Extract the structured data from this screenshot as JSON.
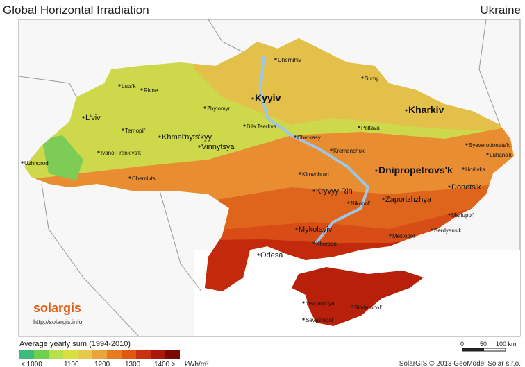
{
  "header": {
    "title": "Global Horizontal Irradiation",
    "country": "Ukraine"
  },
  "map": {
    "cities": [
      "Chernihiv",
      "Sumy",
      "Kyyiv",
      "Kharkiv",
      "Luts'k",
      "Rivne",
      "L'viv",
      "Zhytomyr",
      "Ternopil'",
      "Khmel'nyts'kyy",
      "Bila Tserkva",
      "Poltava",
      "Cherkasy",
      "Kremenchuk",
      "Vinnytsya",
      "Ivano-Frankivs'k",
      "Uzhhorod",
      "Syeverodonets'k",
      "Luhans'k",
      "Kirovohrad",
      "Dnipropetrovs'k",
      "Horlivka",
      "Chernivtsi",
      "Donets'k",
      "Kryvyy Rih",
      "Zaporizhzhya",
      "Nikopol'",
      "Mariupol'",
      "Mykolayiv",
      "Melitopol'",
      "Berdyans'k",
      "Kherson",
      "Odesa",
      "Yevpatoriya",
      "Simferopol'",
      "Sevastopol'"
    ]
  },
  "logo": {
    "name": "solargis",
    "url": "http://solargis.info"
  },
  "legend": {
    "title": "Average yearly sum (1994-2010)",
    "colors": [
      "#3dbb7a",
      "#6fd04c",
      "#b6e04a",
      "#d9e03e",
      "#e6c84a",
      "#e9a43b",
      "#e67b22",
      "#df5a10",
      "#c9320e",
      "#a8190a",
      "#7a0906"
    ],
    "labels": [
      "< 1000",
      "1100",
      "1200",
      "1300",
      "1400 >"
    ],
    "unit": "kWh/m²"
  },
  "scale": {
    "labels": [
      "0",
      "50",
      "100 km"
    ]
  },
  "credit": "SolarGIS © 2013 GeoModel Solar s.r.o."
}
